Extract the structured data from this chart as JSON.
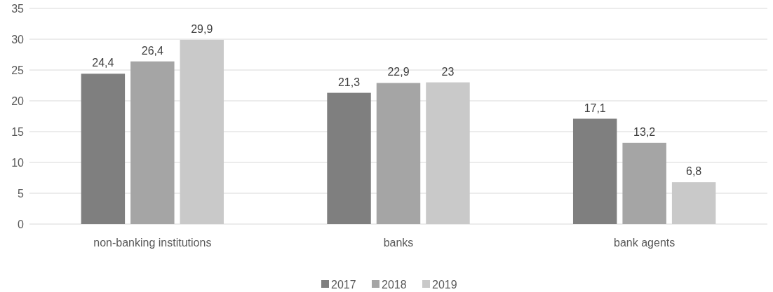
{
  "chart_data": {
    "type": "bar",
    "categories": [
      "non-banking institutions",
      "banks",
      "bank agents"
    ],
    "series": [
      {
        "name": "2017",
        "color": "#7f7f7f",
        "values": [
          24.4,
          21.3,
          17.1
        ],
        "value_labels": [
          "24,4",
          "21,3",
          "17,1"
        ]
      },
      {
        "name": "2018",
        "color": "#a5a5a5",
        "values": [
          26.4,
          22.9,
          13.2
        ],
        "value_labels": [
          "26,4",
          "22,9",
          "13,2"
        ]
      },
      {
        "name": "2019",
        "color": "#c9c9c9",
        "values": [
          29.9,
          23,
          6.8
        ],
        "value_labels": [
          "29,9",
          "23",
          "6,8"
        ]
      }
    ],
    "ylim": [
      0,
      35
    ],
    "yticks": [
      0,
      5,
      10,
      15,
      20,
      25,
      30,
      35
    ],
    "grid": "y",
    "legend": "bottom"
  }
}
